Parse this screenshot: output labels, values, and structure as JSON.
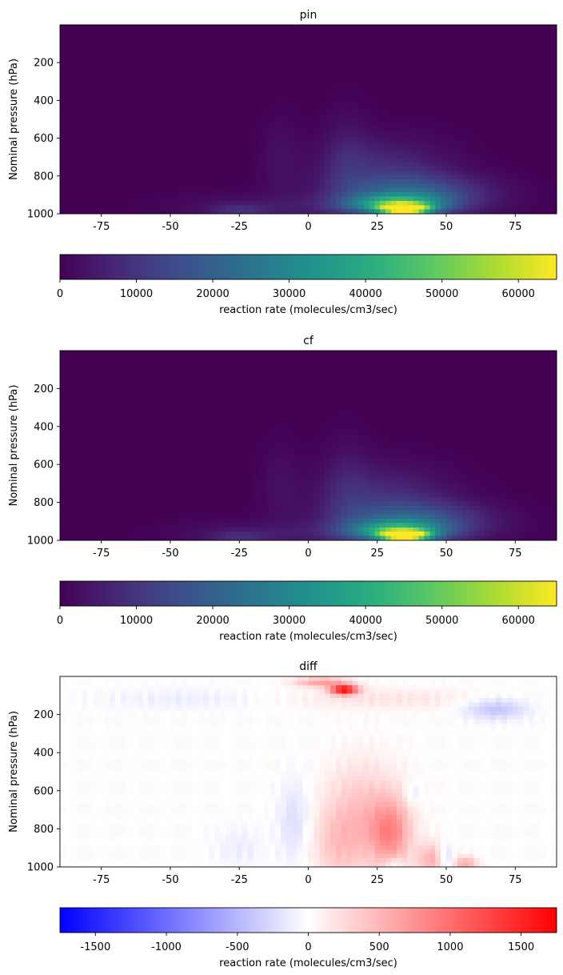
{
  "chart_data": [
    {
      "type": "heatmap",
      "title": "pin",
      "xlabel": "",
      "ylabel": "Nominal pressure (hPa)",
      "xlim": [
        -90,
        90
      ],
      "ylim": [
        1000,
        0
      ],
      "xticks": [
        -75,
        -50,
        -25,
        0,
        25,
        50,
        75
      ],
      "yticks": [
        200,
        400,
        600,
        800,
        1000
      ],
      "colormap": "viridis",
      "colorbar": {
        "label": "reaction rate (molecules/cm3/sec)",
        "range": [
          0,
          65000
        ],
        "ticks": [
          0,
          10000,
          20000,
          30000,
          40000,
          50000,
          60000
        ]
      },
      "features": [
        {
          "lat": 35,
          "pressure": 975,
          "value": 62000
        },
        {
          "lat": 30,
          "pressure": 940,
          "value": 38000
        },
        {
          "lat": 45,
          "pressure": 950,
          "value": 27000
        },
        {
          "lat": 25,
          "pressure": 850,
          "value": 12000
        },
        {
          "lat": 15,
          "pressure": 800,
          "value": 6000
        },
        {
          "lat": -25,
          "pressure": 980,
          "value": 7000
        },
        {
          "lat": -10,
          "pressure": 700,
          "value": 3000
        }
      ]
    },
    {
      "type": "heatmap",
      "title": "cf",
      "xlabel": "",
      "ylabel": "Nominal pressure (hPa)",
      "xlim": [
        -90,
        90
      ],
      "ylim": [
        1000,
        0
      ],
      "xticks": [
        -75,
        -50,
        -25,
        0,
        25,
        50,
        75
      ],
      "yticks": [
        200,
        400,
        600,
        800,
        1000
      ],
      "colormap": "viridis",
      "colorbar": {
        "label": "reaction rate (molecules/cm3/sec)",
        "range": [
          0,
          65000
        ],
        "ticks": [
          0,
          10000,
          20000,
          30000,
          40000,
          50000,
          60000
        ]
      },
      "features": [
        {
          "lat": 35,
          "pressure": 975,
          "value": 61000
        },
        {
          "lat": 30,
          "pressure": 940,
          "value": 36000
        },
        {
          "lat": 45,
          "pressure": 950,
          "value": 25000
        },
        {
          "lat": 25,
          "pressure": 850,
          "value": 11000
        },
        {
          "lat": 15,
          "pressure": 800,
          "value": 5500
        },
        {
          "lat": -25,
          "pressure": 980,
          "value": 6500
        },
        {
          "lat": -10,
          "pressure": 700,
          "value": 2500
        }
      ]
    },
    {
      "type": "heatmap",
      "title": "diff",
      "xlabel": "",
      "ylabel": "Nominal pressure (hPa)",
      "xlim": [
        -90,
        90
      ],
      "ylim": [
        1000,
        0
      ],
      "xticks": [
        -75,
        -50,
        -25,
        0,
        25,
        50,
        75
      ],
      "yticks": [
        200,
        400,
        600,
        800,
        1000
      ],
      "colormap": "bwr",
      "colorbar": {
        "label": "reaction rate (molecules/cm3/sec)",
        "range": [
          -1750,
          1750
        ],
        "ticks": [
          -1500,
          -1000,
          -500,
          0,
          500,
          1000,
          1500
        ]
      },
      "features": [
        {
          "lat": 13,
          "pressure": 60,
          "value": 1600
        },
        {
          "lat": 5,
          "pressure": 30,
          "value": 700
        },
        {
          "lat": 68,
          "pressure": 170,
          "value": -450
        },
        {
          "lat": 30,
          "pressure": 800,
          "value": 700
        },
        {
          "lat": 33,
          "pressure": 700,
          "value": 550
        },
        {
          "lat": 45,
          "pressure": 950,
          "value": 500
        },
        {
          "lat": 55,
          "pressure": 980,
          "value": 600
        },
        {
          "lat": 50,
          "pressure": 960,
          "value": -400
        },
        {
          "lat": 30,
          "pressure": 990,
          "value": -300
        },
        {
          "lat": -5,
          "pressure": 750,
          "value": -250
        }
      ]
    }
  ]
}
